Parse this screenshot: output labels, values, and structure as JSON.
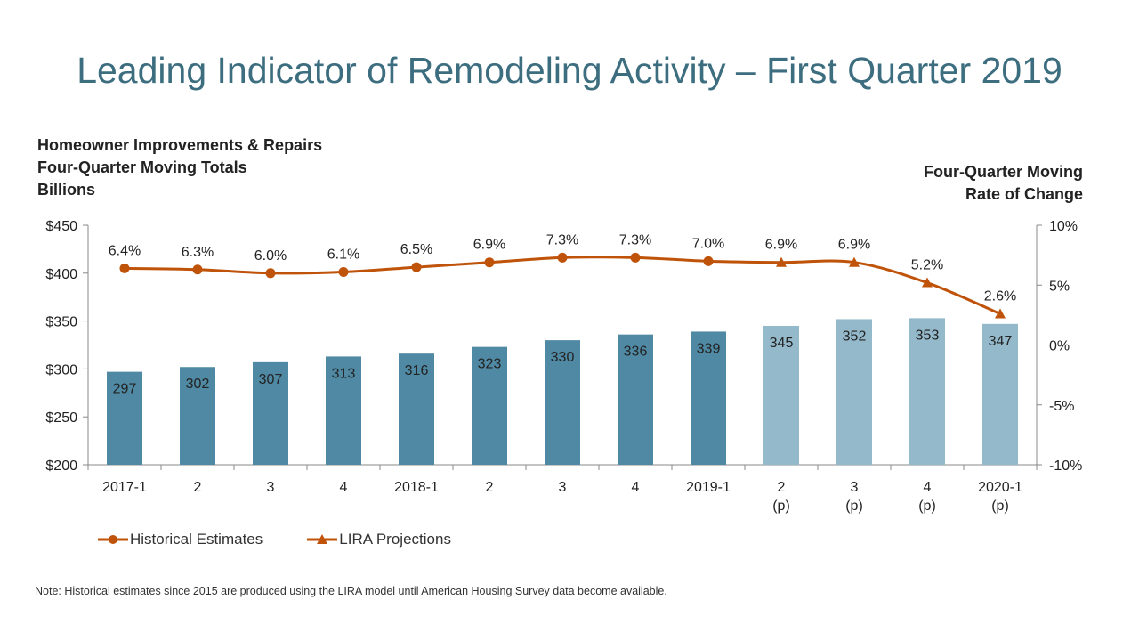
{
  "title": "Leading Indicator of Remodeling Activity – First Quarter 2019",
  "left_axis_title": [
    "Homeowner Improvements & Repairs",
    "Four-Quarter Moving Totals",
    "Billions"
  ],
  "right_axis_title": [
    "Four-Quarter Moving",
    "Rate of Change"
  ],
  "note": "Note: Historical estimates since 2015 are produced using the LIRA model until American Housing Survey data become available.",
  "colors": {
    "historical_bar": "#4f89a3",
    "projection_bar": "#93b9cb",
    "line": "#c0530a",
    "title": "#3d6e80"
  },
  "chart_data": {
    "type": "bar",
    "categories": [
      [
        "2017-1"
      ],
      [
        "2"
      ],
      [
        "3"
      ],
      [
        "4"
      ],
      [
        "2018-1"
      ],
      [
        "2"
      ],
      [
        "3"
      ],
      [
        "4"
      ],
      [
        "2019-1"
      ],
      [
        "2",
        "(p)"
      ],
      [
        "3",
        "(p)"
      ],
      [
        "4",
        "(p)"
      ],
      [
        "2020-1",
        "(p)"
      ]
    ],
    "bars": {
      "values": [
        297,
        302,
        307,
        313,
        316,
        323,
        330,
        336,
        339,
        345,
        352,
        353,
        347
      ],
      "value_labels": [
        "297",
        "302",
        "307",
        "313",
        "316",
        "323",
        "330",
        "336",
        "339",
        "345",
        "352",
        "353",
        "347"
      ],
      "projected": [
        false,
        false,
        false,
        false,
        false,
        false,
        false,
        false,
        false,
        true,
        true,
        true,
        true
      ]
    },
    "line": {
      "values": [
        6.4,
        6.3,
        6.0,
        6.1,
        6.5,
        6.9,
        7.3,
        7.3,
        7.0,
        6.9,
        6.9,
        5.2,
        2.6
      ],
      "value_labels": [
        "6.4%",
        "6.3%",
        "6.0%",
        "6.1%",
        "6.5%",
        "6.9%",
        "7.3%",
        "7.3%",
        "7.0%",
        "6.9%",
        "6.9%",
        "5.2%",
        "2.6%"
      ]
    },
    "series": [
      {
        "name": "Historical Estimates",
        "marker": "circle",
        "range": [
          0,
          8
        ]
      },
      {
        "name": "LIRA Projections",
        "marker": "triangle",
        "range": [
          9,
          12
        ]
      }
    ],
    "y_left": {
      "ylim": [
        200,
        450
      ],
      "ticks": [
        200,
        250,
        300,
        350,
        400,
        450
      ],
      "tick_labels": [
        "$200",
        "$250",
        "$300",
        "$350",
        "$400",
        "$450"
      ]
    },
    "y_right": {
      "ylim": [
        -10,
        10
      ],
      "ticks": [
        -10,
        -5,
        0,
        5,
        10
      ],
      "tick_labels": [
        "-10%",
        "-5%",
        "0%",
        "5%",
        "10%"
      ]
    },
    "grid": false,
    "legend": "bottom-left"
  }
}
